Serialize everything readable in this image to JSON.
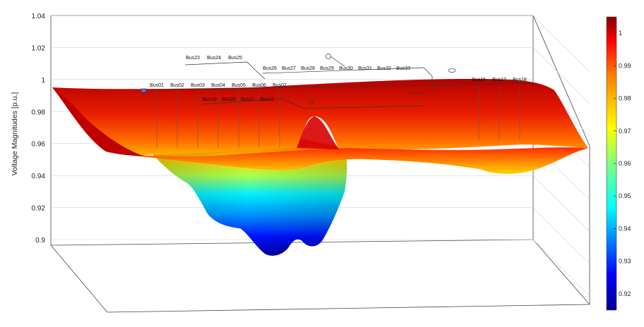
{
  "chart_data": {
    "type": "surface3d",
    "title": "",
    "xlabel": "",
    "ylabel": "Voltage Magnitudes [p.u.]",
    "zlim": [
      0.9,
      1.04
    ],
    "z_ticks": [
      "0.9",
      "0.92",
      "0.94",
      "0.96",
      "0.98",
      "1",
      "1.02",
      "1.04"
    ],
    "grid": true,
    "colormap": "jet",
    "colorbar": {
      "min": 0.915,
      "max": 1.005,
      "ticks": [
        "1",
        "0.99",
        "0.98",
        "0.97",
        "0.96",
        "0.95",
        "0.94",
        "0.93",
        "0.92"
      ],
      "tick_values": [
        1.0,
        0.99,
        0.98,
        0.97,
        0.96,
        0.95,
        0.94,
        0.93,
        0.92
      ],
      "placement": "right"
    },
    "bus_labels_main": [
      "Bus01",
      "Bus02",
      "Bus03",
      "Bus04",
      "Bus05",
      "Bus06",
      "Bus07",
      "Bus16",
      "Bus17",
      "Bus18"
    ],
    "bus_labels_lateral_a": [
      "Bus23",
      "Bus24",
      "Bus25"
    ],
    "bus_labels_lateral_b": [
      "Bus26",
      "Bus27",
      "Bus28",
      "Bus29",
      "Bus30",
      "Bus31",
      "Bus32",
      "Bus33"
    ],
    "bus_labels_lateral_c": [
      "Bus19",
      "Bus20",
      "Bus21",
      "Bus22"
    ],
    "front_profile": [
      {
        "pos": 0.0,
        "v": 0.998
      },
      {
        "pos": 0.12,
        "v": 0.985
      },
      {
        "pos": 0.25,
        "v": 0.975
      },
      {
        "pos": 0.38,
        "v": 0.978
      },
      {
        "pos": 0.45,
        "v": 0.975
      },
      {
        "pos": 0.5,
        "v": 0.968
      },
      {
        "pos": 0.55,
        "v": 0.972
      },
      {
        "pos": 0.62,
        "v": 0.978
      },
      {
        "pos": 0.75,
        "v": 0.982
      },
      {
        "pos": 0.85,
        "v": 0.988
      },
      {
        "pos": 0.94,
        "v": 0.992
      },
      {
        "pos": 1.0,
        "v": 0.991
      }
    ],
    "drop_profile": [
      {
        "pos": 0.22,
        "v": 0.952
      },
      {
        "pos": 0.28,
        "v": 0.942
      },
      {
        "pos": 0.33,
        "v": 0.928
      },
      {
        "pos": 0.38,
        "v": 0.922
      },
      {
        "pos": 0.42,
        "v": 0.915
      },
      {
        "pos": 0.46,
        "v": 0.926
      },
      {
        "pos": 0.5,
        "v": 0.918
      },
      {
        "pos": 0.54,
        "v": 0.93
      },
      {
        "pos": 0.58,
        "v": 0.94
      }
    ]
  }
}
